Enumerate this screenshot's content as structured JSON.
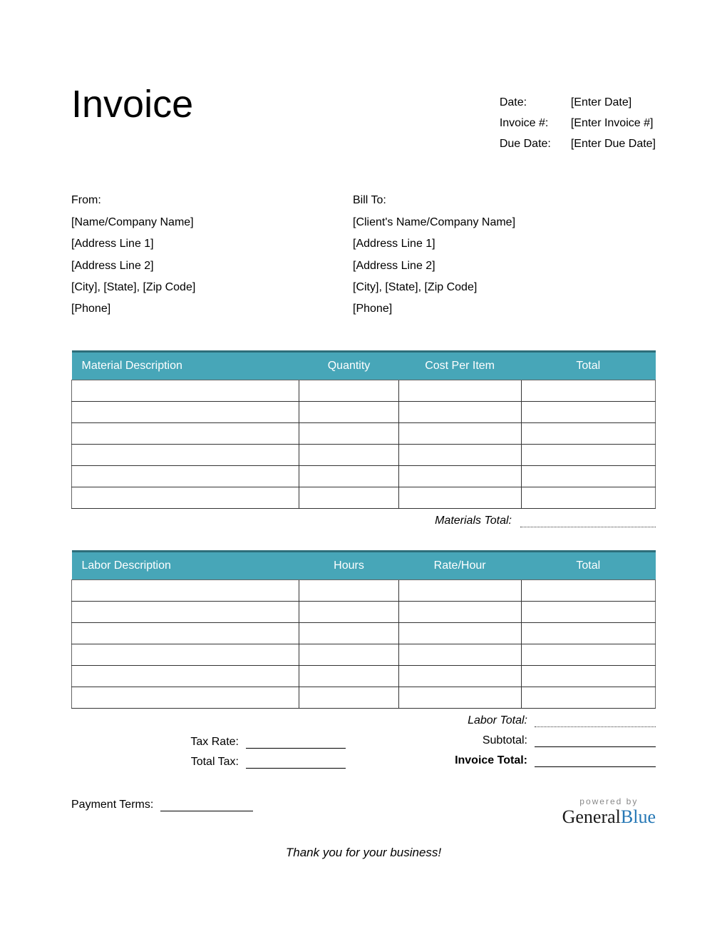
{
  "title": "Invoice",
  "meta": {
    "date_label": "Date:",
    "date_value": "[Enter Date]",
    "invoice_num_label": "Invoice #:",
    "invoice_num_value": "[Enter Invoice #]",
    "due_label": "Due Date:",
    "due_value": "[Enter Due Date]"
  },
  "from": {
    "heading": "From:",
    "lines": [
      "[Name/Company Name]",
      "[Address Line 1]",
      "[Address Line 2]",
      "[City], [State], [Zip Code]",
      "[Phone]"
    ]
  },
  "billto": {
    "heading": "Bill To:",
    "lines": [
      "[Client's Name/Company Name]",
      "[Address Line 1]",
      "[Address Line 2]",
      "[City], [State], [Zip Code]",
      "[Phone]"
    ]
  },
  "materials": {
    "headers": [
      "Material Description",
      "Quantity",
      "Cost Per Item",
      "Total"
    ],
    "rows": [
      [
        "",
        "",
        "",
        ""
      ],
      [
        "",
        "",
        "",
        ""
      ],
      [
        "",
        "",
        "",
        ""
      ],
      [
        "",
        "",
        "",
        ""
      ],
      [
        "",
        "",
        "",
        ""
      ],
      [
        "",
        "",
        "",
        ""
      ]
    ],
    "total_label": "Materials Total:",
    "header_bg": "#47a6b8",
    "header_border_top": "#2d6e7a",
    "header_text_color": "#ffffff"
  },
  "labor": {
    "headers": [
      "Labor Description",
      "Hours",
      "Rate/Hour",
      "Total"
    ],
    "rows": [
      [
        "",
        "",
        "",
        ""
      ],
      [
        "",
        "",
        "",
        ""
      ],
      [
        "",
        "",
        "",
        ""
      ],
      [
        "",
        "",
        "",
        ""
      ],
      [
        "",
        "",
        "",
        ""
      ],
      [
        "",
        "",
        "",
        ""
      ]
    ],
    "total_label": "Labor Total:"
  },
  "summary": {
    "tax_rate_label": "Tax Rate:",
    "total_tax_label": "Total Tax:",
    "subtotal_label": "Subtotal:",
    "invoice_total_label": "Invoice Total:"
  },
  "payment_terms_label": "Payment Terms:",
  "thanks": "Thank you for your business!",
  "footer": {
    "powered": "powered by",
    "brand_general": "General",
    "brand_blue": "Blue"
  },
  "styling": {
    "page_bg": "#ffffff",
    "text_color": "#000000",
    "accent": "#47a6b8",
    "brand_blue_color": "#2577b5",
    "title_fontsize": 54,
    "body_fontsize": 16,
    "col_widths_pct": [
      39,
      17,
      21,
      23
    ]
  }
}
